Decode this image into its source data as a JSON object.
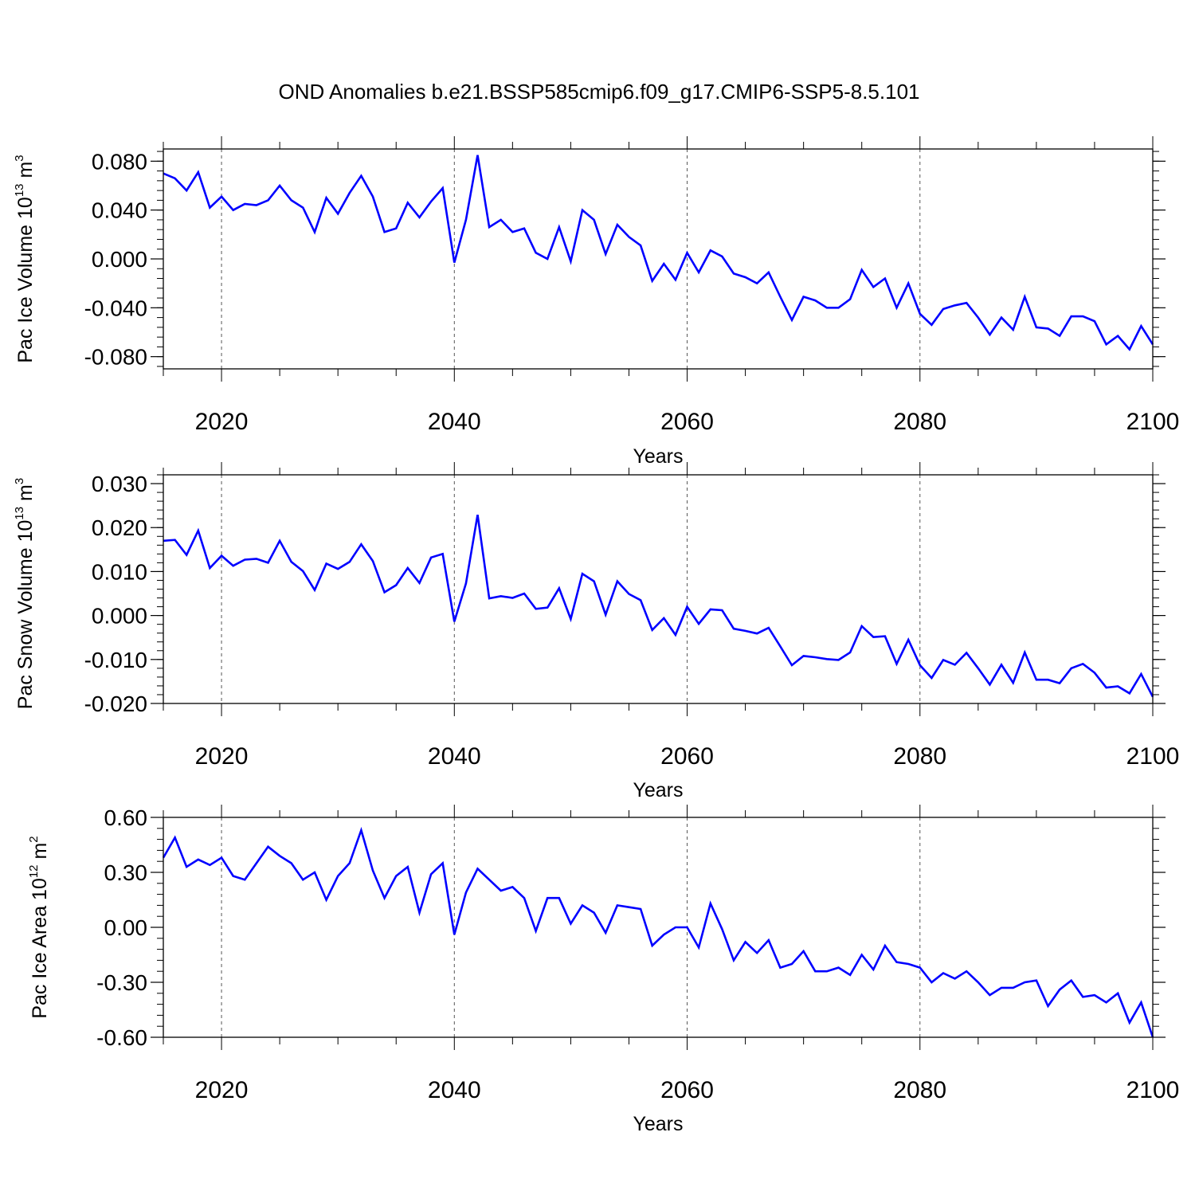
{
  "title": "OND Anomalies b.e21.BSSP585cmip6.f09_g17.CMIP6-SSP5-8.5.101",
  "colors": {
    "line": "#0000ff",
    "axis": "#000000",
    "grid": "#555555"
  },
  "chart_data": [
    {
      "type": "line",
      "ylabel": {
        "text": "Pac Ice Volume 10",
        "exp": "13",
        "unit": " m",
        "unit_exp": "3"
      },
      "xlabel": "Years",
      "xlim": [
        2015,
        2100
      ],
      "ylim": [
        -0.09,
        0.09
      ],
      "xticks": [
        2020,
        2040,
        2060,
        2080,
        2100
      ],
      "yticks": [
        -0.08,
        -0.04,
        0.0,
        0.04,
        0.08
      ],
      "ytick_labels": [
        "-0.080",
        "-0.040",
        "0.000",
        "0.040",
        "0.080"
      ],
      "grid_x": [
        2020,
        2040,
        2060,
        2080
      ],
      "x_start": 2015,
      "values": [
        0.07,
        0.066,
        0.056,
        0.071,
        0.042,
        0.051,
        0.04,
        0.045,
        0.044,
        0.048,
        0.06,
        0.048,
        0.042,
        0.022,
        0.05,
        0.037,
        0.054,
        0.068,
        0.051,
        0.022,
        0.025,
        0.046,
        0.034,
        0.047,
        0.058,
        -0.003,
        0.032,
        0.085,
        0.026,
        0.032,
        0.022,
        0.025,
        0.005,
        0.0,
        0.026,
        -0.002,
        0.04,
        0.032,
        0.004,
        0.028,
        0.018,
        0.011,
        -0.018,
        -0.004,
        -0.017,
        0.005,
        -0.011,
        0.007,
        0.002,
        -0.012,
        -0.015,
        -0.02,
        -0.011,
        -0.031,
        -0.05,
        -0.031,
        -0.034,
        -0.04,
        -0.04,
        -0.033,
        -0.009,
        -0.023,
        -0.016,
        -0.04,
        -0.02,
        -0.045,
        -0.054,
        -0.041,
        -0.038,
        -0.036,
        -0.048,
        -0.062,
        -0.048,
        -0.058,
        -0.031,
        -0.056,
        -0.057,
        -0.063,
        -0.047,
        -0.047,
        -0.051,
        -0.07,
        -0.063,
        -0.074,
        -0.055,
        -0.07
      ]
    },
    {
      "type": "line",
      "ylabel": {
        "text": "Pac Snow Volume 10",
        "exp": "13",
        "unit": " m",
        "unit_exp": "3"
      },
      "xlabel": "Years",
      "xlim": [
        2015,
        2100
      ],
      "ylim": [
        -0.02,
        0.032
      ],
      "xticks": [
        2020,
        2040,
        2060,
        2080,
        2100
      ],
      "yticks": [
        -0.02,
        -0.01,
        0.0,
        0.01,
        0.02,
        0.03
      ],
      "ytick_labels": [
        "-0.020",
        "-0.010",
        "0.000",
        "0.010",
        "0.020",
        "0.030"
      ],
      "grid_x": [
        2020,
        2040,
        2060,
        2080
      ],
      "x_start": 2015,
      "values": [
        0.017,
        0.0172,
        0.0138,
        0.0193,
        0.0108,
        0.0136,
        0.0113,
        0.0127,
        0.0129,
        0.012,
        0.017,
        0.0122,
        0.0101,
        0.0058,
        0.0118,
        0.0106,
        0.0122,
        0.0162,
        0.0124,
        0.0053,
        0.0069,
        0.0108,
        0.0074,
        0.0132,
        0.014,
        -0.0014,
        0.0073,
        0.0229,
        0.0039,
        0.0044,
        0.004,
        0.005,
        0.0015,
        0.0018,
        0.0062,
        -0.0008,
        0.0095,
        0.0078,
        0.0002,
        0.0078,
        0.0049,
        0.0035,
        -0.0033,
        -0.0006,
        -0.0044,
        0.002,
        -0.0019,
        0.0014,
        0.0012,
        -0.003,
        -0.0035,
        -0.0041,
        -0.0028,
        -0.007,
        -0.0113,
        -0.0092,
        -0.0095,
        -0.0099,
        -0.0101,
        -0.0084,
        -0.0024,
        -0.0049,
        -0.0047,
        -0.011,
        -0.0055,
        -0.0113,
        -0.0142,
        -0.0101,
        -0.0112,
        -0.0085,
        -0.012,
        -0.0157,
        -0.0112,
        -0.0153,
        -0.0084,
        -0.0146,
        -0.0146,
        -0.0154,
        -0.012,
        -0.011,
        -0.013,
        -0.0164,
        -0.0161,
        -0.0177,
        -0.0133,
        -0.0185
      ]
    },
    {
      "type": "line",
      "ylabel": {
        "text": "Pac Ice Area 10",
        "exp": "12",
        "unit": " m",
        "unit_exp": "2"
      },
      "xlabel": "Years",
      "xlim": [
        2015,
        2100
      ],
      "ylim": [
        -0.6,
        0.6
      ],
      "xticks": [
        2020,
        2040,
        2060,
        2080,
        2100
      ],
      "yticks": [
        -0.6,
        -0.3,
        0.0,
        0.3,
        0.6
      ],
      "ytick_labels": [
        "-0.60",
        "-0.30",
        "0.00",
        "0.30",
        "0.60"
      ],
      "grid_x": [
        2020,
        2040,
        2060,
        2080
      ],
      "x_start": 2015,
      "values": [
        0.38,
        0.49,
        0.33,
        0.37,
        0.34,
        0.38,
        0.28,
        0.26,
        0.35,
        0.44,
        0.39,
        0.35,
        0.26,
        0.3,
        0.15,
        0.28,
        0.35,
        0.53,
        0.31,
        0.16,
        0.28,
        0.33,
        0.08,
        0.29,
        0.35,
        -0.04,
        0.19,
        0.32,
        0.26,
        0.2,
        0.22,
        0.16,
        -0.02,
        0.16,
        0.16,
        0.02,
        0.12,
        0.08,
        -0.03,
        0.12,
        0.11,
        0.1,
        -0.1,
        -0.04,
        0.0,
        0.0,
        -0.11,
        0.13,
        -0.01,
        -0.18,
        -0.08,
        -0.14,
        -0.07,
        -0.22,
        -0.2,
        -0.13,
        -0.24,
        -0.24,
        -0.22,
        -0.26,
        -0.15,
        -0.23,
        -0.1,
        -0.19,
        -0.2,
        -0.22,
        -0.3,
        -0.25,
        -0.28,
        -0.24,
        -0.3,
        -0.37,
        -0.33,
        -0.33,
        -0.3,
        -0.29,
        -0.43,
        -0.34,
        -0.29,
        -0.38,
        -0.37,
        -0.41,
        -0.36,
        -0.52,
        -0.41,
        -0.6
      ]
    }
  ]
}
